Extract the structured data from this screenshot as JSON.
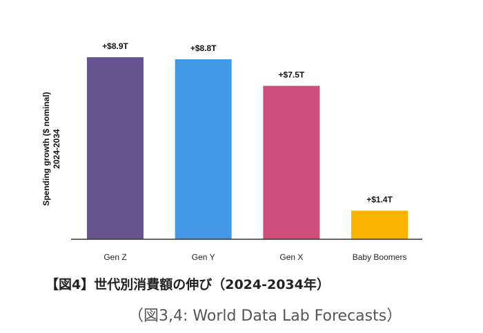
{
  "chart_data": {
    "type": "bar",
    "categories": [
      "Gen Z",
      "Gen Y",
      "Gen X",
      "Baby Boomers"
    ],
    "values": [
      8.9,
      8.8,
      7.5,
      1.4
    ],
    "data_labels": [
      "+$8.9T",
      "+$8.8T",
      "+$7.5T",
      "+$1.4T"
    ],
    "colors": [
      "#665491",
      "#4499e4",
      "#cd4e7b",
      "#fab301"
    ],
    "ylabel_line1": "Spending growth ($ nominal)",
    "ylabel_line2": "2024-2034",
    "ylim": [
      0,
      8.9
    ],
    "grid": false,
    "legend": "none"
  },
  "caption": {
    "title": "【図4】世代別消費額の伸び（2024-2034年）",
    "source": "（図3,4: World Data Lab Forecasts）"
  }
}
